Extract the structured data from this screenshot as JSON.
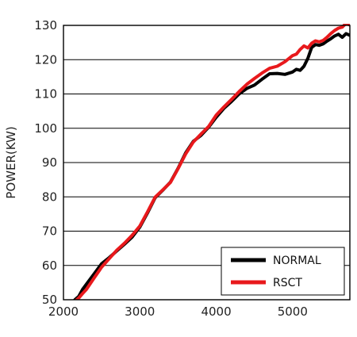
{
  "chart_data": {
    "type": "line",
    "title": "",
    "xlabel": "",
    "ylabel": "POWER(KW)",
    "xlim": [
      2000,
      5750
    ],
    "ylim": [
      50,
      130
    ],
    "x_ticks": [
      2000,
      3000,
      4000,
      5000
    ],
    "y_ticks": [
      50,
      60,
      70,
      80,
      90,
      100,
      110,
      120,
      130
    ],
    "grid": "horizontal",
    "legend_position": "bottom-right",
    "series": [
      {
        "name": "NORMAL",
        "color": "#000000",
        "x": [
          2150,
          2200,
          2250,
          2300,
          2400,
          2500,
          2600,
          2700,
          2800,
          2900,
          3000,
          3100,
          3200,
          3300,
          3400,
          3500,
          3600,
          3700,
          3800,
          3900,
          4000,
          4100,
          4200,
          4300,
          4400,
          4500,
          4600,
          4700,
          4800,
          4900,
          5000,
          5050,
          5100,
          5150,
          5200,
          5250,
          5300,
          5350,
          5400,
          5450,
          5500,
          5550,
          5600,
          5650,
          5700,
          5750
        ],
        "y": [
          50,
          51,
          53,
          54.5,
          57.5,
          60.5,
          62.3,
          64.3,
          66.2,
          68.3,
          71.2,
          75.3,
          79.7,
          81.9,
          84.3,
          88.3,
          92.8,
          96.2,
          97.9,
          100.3,
          103.2,
          105.8,
          107.8,
          110,
          111.6,
          112.6,
          114.3,
          115.9,
          116,
          115.7,
          116.4,
          117.2,
          116.9,
          118.1,
          120.4,
          123.6,
          124.4,
          124.2,
          124.6,
          125.4,
          126.1,
          126.9,
          127.4,
          126.5,
          127.6,
          127.1
        ]
      },
      {
        "name": "RSCT",
        "color": "#e8191c",
        "x": [
          2150,
          2200,
          2250,
          2300,
          2400,
          2500,
          2600,
          2700,
          2800,
          2900,
          3000,
          3100,
          3200,
          3300,
          3400,
          3500,
          3600,
          3700,
          3800,
          3900,
          4000,
          4100,
          4200,
          4300,
          4400,
          4500,
          4600,
          4700,
          4800,
          4900,
          5000,
          5050,
          5100,
          5150,
          5200,
          5250,
          5300,
          5350,
          5400,
          5450,
          5500,
          5550,
          5600,
          5650,
          5700,
          5750
        ],
        "y": [
          49.5,
          50.5,
          51.8,
          53,
          56.3,
          59.5,
          62,
          64.5,
          66.5,
          68.8,
          71.5,
          75.6,
          79.9,
          82,
          84.2,
          88.2,
          92.5,
          96,
          98.3,
          100.5,
          103.8,
          106.2,
          108.4,
          110.7,
          112.8,
          114.5,
          116.1,
          117.5,
          118.1,
          119.4,
          121.2,
          121.6,
          123,
          124,
          123.4,
          124.8,
          125.5,
          125.2,
          125.6,
          126.5,
          127.6,
          128.5,
          129.2,
          129.5,
          130.6,
          130.1
        ]
      }
    ]
  }
}
